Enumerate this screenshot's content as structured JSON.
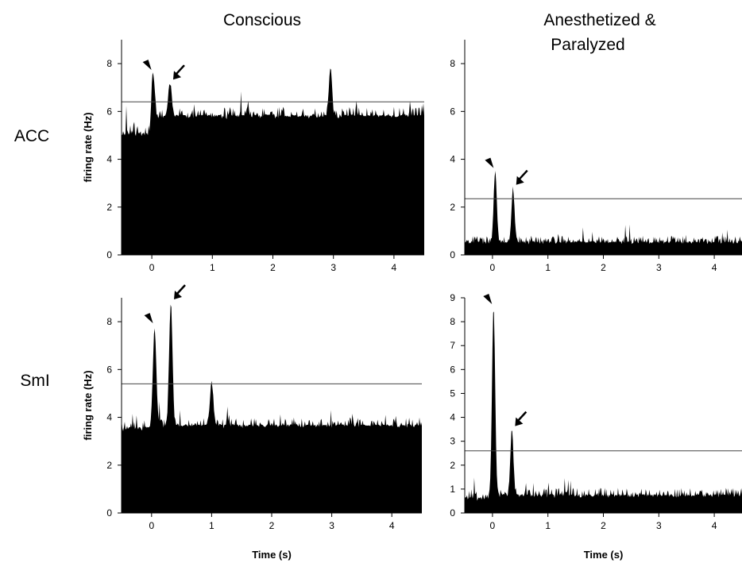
{
  "column_titles": [
    "Conscious",
    "Anesthetized &",
    "Paralyzed"
  ],
  "row_labels": [
    "ACC",
    "SmI"
  ],
  "chart_data": [
    {
      "type": "bar",
      "row": "ACC",
      "condition": "Conscious",
      "xlabel": "",
      "ylabel": "firing rate (Hz)",
      "xlim": [
        -0.5,
        4.5
      ],
      "ylim": [
        0,
        9
      ],
      "x_ticks": [
        0,
        1,
        2,
        3,
        4
      ],
      "y_ticks": [
        0,
        2,
        4,
        6,
        8
      ],
      "threshold": 6.4,
      "baseline": 5.0,
      "baseline_post": 5.75,
      "noise": 0.45,
      "peaks": [
        {
          "x": 0.02,
          "value": 7.6,
          "marker": "arrowhead"
        },
        {
          "x": 0.3,
          "value": 7.2,
          "marker": "arrow"
        },
        {
          "x": 2.95,
          "value": 7.8,
          "marker": ""
        }
      ]
    },
    {
      "type": "bar",
      "row": "ACC",
      "condition": "Anesthetized & Paralyzed",
      "xlabel": "",
      "ylabel": "",
      "xlim": [
        -0.5,
        4.5
      ],
      "ylim": [
        0,
        9
      ],
      "x_ticks": [
        0,
        1,
        2,
        3,
        4
      ],
      "y_ticks": [
        0,
        2,
        4,
        6,
        8
      ],
      "threshold": 2.35,
      "baseline": 0.5,
      "baseline_post": 0.5,
      "noise": 0.3,
      "peaks": [
        {
          "x": 0.05,
          "value": 3.5,
          "marker": "arrowhead"
        },
        {
          "x": 0.37,
          "value": 2.8,
          "marker": "arrow"
        }
      ]
    },
    {
      "type": "bar",
      "row": "SmI",
      "condition": "Conscious",
      "xlabel": "Time (s)",
      "ylabel": "firing rate (Hz)",
      "xlim": [
        -0.5,
        4.5
      ],
      "ylim": [
        0,
        9
      ],
      "x_ticks": [
        0,
        1,
        2,
        3,
        4
      ],
      "y_ticks": [
        0,
        2,
        4,
        6,
        8
      ],
      "threshold": 5.4,
      "baseline": 3.5,
      "baseline_post": 3.6,
      "noise": 0.4,
      "peaks": [
        {
          "x": 0.05,
          "value": 7.8,
          "marker": "arrowhead"
        },
        {
          "x": 0.32,
          "value": 8.8,
          "marker": "arrow"
        },
        {
          "x": 1.0,
          "value": 5.5,
          "marker": ""
        }
      ]
    },
    {
      "type": "bar",
      "row": "SmI",
      "condition": "Anesthetized & Paralyzed",
      "xlabel": "Time (s)",
      "ylabel": "",
      "xlim": [
        -0.5,
        4.5
      ],
      "ylim": [
        0,
        9
      ],
      "x_ticks": [
        0,
        1,
        2,
        3,
        4
      ],
      "y_ticks": [
        0,
        1,
        2,
        3,
        4,
        5,
        6,
        7,
        8,
        9
      ],
      "threshold": 2.6,
      "baseline": 0.6,
      "baseline_post": 0.7,
      "noise": 0.35,
      "peaks": [
        {
          "x": 0.02,
          "value": 8.6,
          "marker": "arrowhead"
        },
        {
          "x": 0.35,
          "value": 3.5,
          "marker": "arrow"
        }
      ]
    }
  ]
}
